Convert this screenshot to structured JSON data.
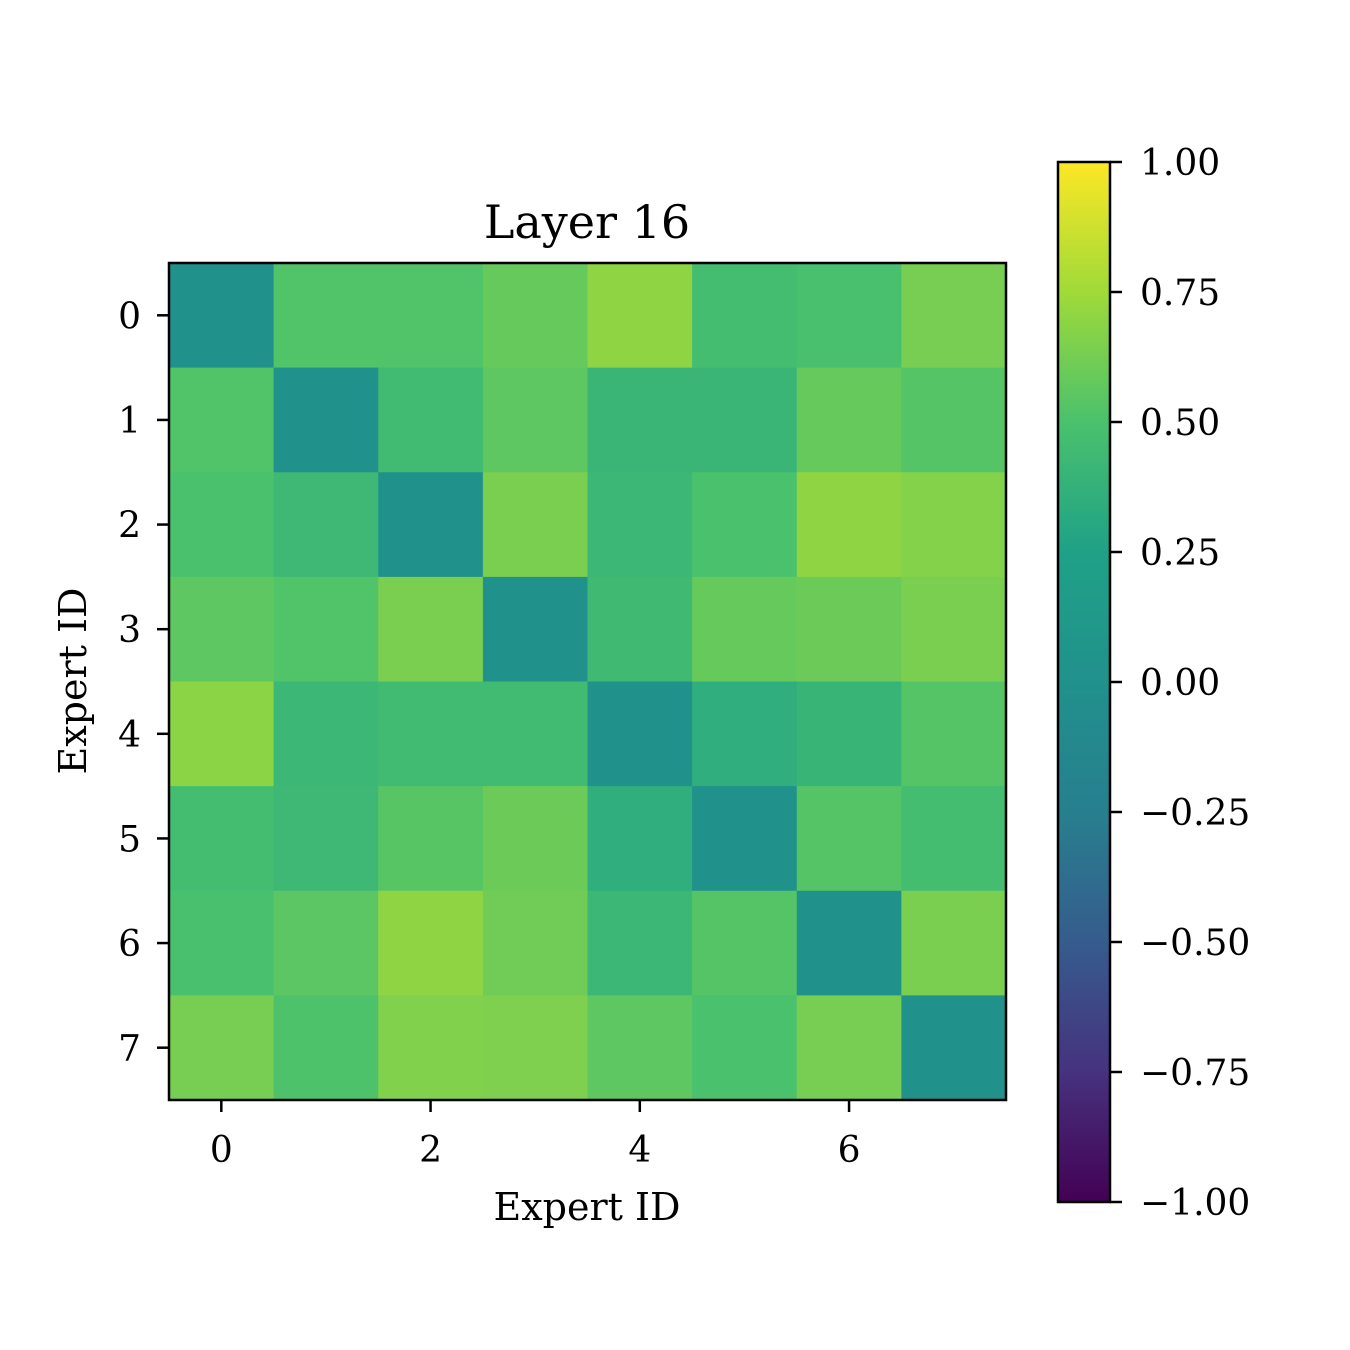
{
  "chart_data": {
    "type": "heatmap",
    "title": "Layer 16",
    "xlabel": "Expert ID",
    "ylabel": "Expert ID",
    "x_ticks": [
      "0",
      "2",
      "4",
      "6"
    ],
    "y_ticks": [
      "0",
      "1",
      "2",
      "3",
      "4",
      "5",
      "6",
      "7"
    ],
    "colormap": "viridis",
    "vmin": -1.0,
    "vmax": 1.0,
    "colorbar_ticks": [
      "1.00",
      "0.75",
      "0.50",
      "0.25",
      "0.00",
      "−0.25",
      "−0.50",
      "−0.75",
      "−1.00"
    ],
    "matrix": [
      [
        0.0,
        0.52,
        0.52,
        0.58,
        0.7,
        0.47,
        0.49,
        0.63
      ],
      [
        0.52,
        0.0,
        0.45,
        0.56,
        0.41,
        0.41,
        0.58,
        0.53
      ],
      [
        0.5,
        0.43,
        0.0,
        0.64,
        0.42,
        0.5,
        0.7,
        0.67
      ],
      [
        0.56,
        0.52,
        0.64,
        0.0,
        0.44,
        0.58,
        0.6,
        0.64
      ],
      [
        0.69,
        0.42,
        0.45,
        0.45,
        0.0,
        0.35,
        0.4,
        0.53
      ],
      [
        0.47,
        0.43,
        0.54,
        0.6,
        0.35,
        0.0,
        0.53,
        0.47
      ],
      [
        0.49,
        0.55,
        0.7,
        0.61,
        0.42,
        0.53,
        0.0,
        0.64
      ],
      [
        0.63,
        0.51,
        0.66,
        0.65,
        0.56,
        0.5,
        0.63,
        0.0
      ]
    ]
  }
}
